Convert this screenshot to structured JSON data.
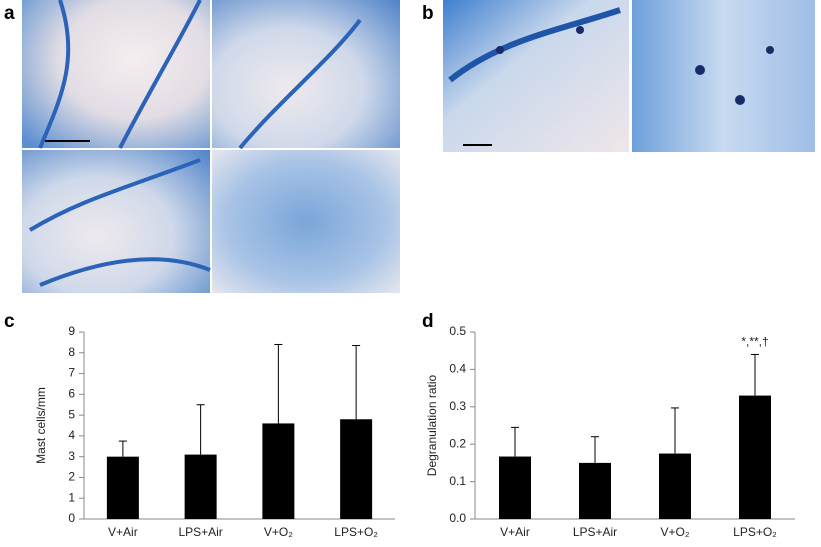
{
  "panel_labels": [
    "a",
    "b",
    "c",
    "d"
  ],
  "chart_data": [
    {
      "type": "bar",
      "ylabel": "Mast cells/mm",
      "categories": [
        "V+Air",
        "LPS+Air",
        "V+O₂",
        "LPS+O₂"
      ],
      "values": [
        3.0,
        3.1,
        4.6,
        4.8
      ],
      "errors": [
        0.75,
        2.4,
        3.8,
        3.55
      ],
      "color": "#000000",
      "ylim": [
        0,
        9
      ],
      "yticks": [
        0,
        1,
        2,
        3,
        4,
        5,
        6,
        7,
        8,
        9
      ]
    },
    {
      "type": "bar",
      "ylabel": "Degranulation ratio",
      "categories": [
        "V+Air",
        "LPS+Air",
        "V+O₂",
        "LPS+O₂"
      ],
      "values": [
        0.167,
        0.15,
        0.175,
        0.33
      ],
      "errors": [
        0.078,
        0.07,
        0.122,
        0.11
      ],
      "color": "#000000",
      "ylim": [
        0,
        0.5
      ],
      "yticks": [
        {
          "value": 0,
          "label": "0.0"
        },
        0.1,
        0.2,
        0.3,
        0.4,
        0.5
      ],
      "annotations": [
        {
          "category": 3,
          "text": "*,**,†"
        }
      ]
    }
  ]
}
